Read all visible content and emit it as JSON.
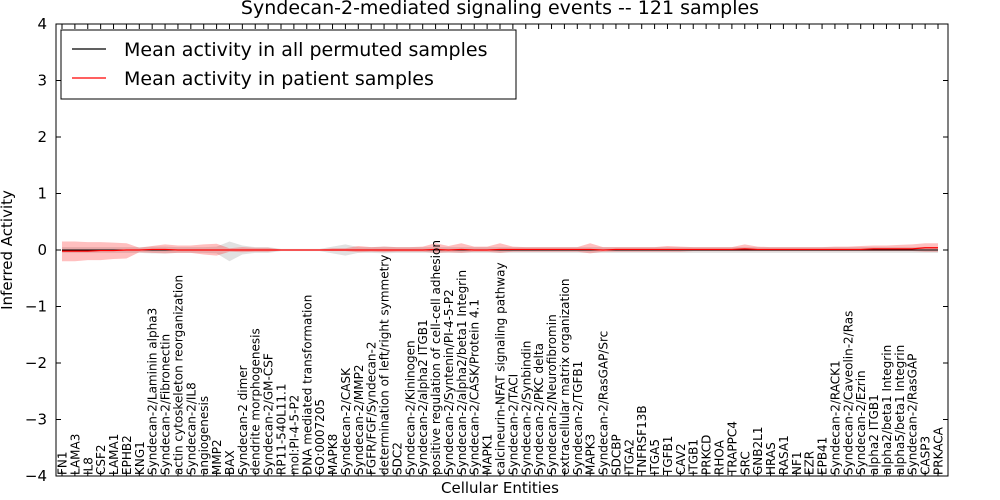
{
  "chart_data": {
    "type": "line",
    "title": "Syndecan-2-mediated signaling events -- 121 samples",
    "xlabel": "Cellular Entities",
    "ylabel": "Inferred Activity",
    "ylim": [
      -4,
      4
    ],
    "yticks": [
      4,
      3,
      2,
      1,
      0,
      -1,
      -2,
      -3,
      -4
    ],
    "legend": {
      "placement": "top-left",
      "entries": [
        "Mean activity in all permuted samples",
        "Mean activity in patient samples"
      ]
    },
    "categories": [
      "FN1",
      "LAMA3",
      "IL8",
      "CSF2",
      "LAMA1",
      "EPHB2",
      "KNG1",
      "Syndecan-2/Laminin alpha3",
      "Syndecan-2/Fibronectin",
      "actin cytoskeleton reorganization",
      "Syndecan-2/IL8",
      "angiogenesis",
      "MMP2",
      "BAX",
      "Syndecan-2 dimer",
      "dendrite morphogenesis",
      "Syndecan-2/GM-CSF",
      "RP11-540L11.1",
      "mol:PI-4-5-P2",
      "DNA mediated transformation",
      "GO:0007205",
      "MAPK8",
      "Syndecan-2/CASK",
      "Syndecan-2/MMP2",
      "FGFR/FGF/Syndecan-2",
      "determination of left/right symmetry",
      "SDC2",
      "Syndecan-2/Kininogen",
      "Syndecan-2/alpha2 ITGB1",
      "positive regulation of cell-cell adhesion",
      "Syndecan-2/Syntenin/PI-4-5-P2",
      "Syndecan-2/alpha2/beta1 Integrin",
      "Syndecan-2/CASK/Protein 4.1",
      "MAPK1",
      "calcineurin-NFAT signaling pathway",
      "Syndecan-2/TACI",
      "Syndecan-2/Synbindin",
      "Syndecan-2/PKC delta",
      "Syndecan-2/Neurofibromin",
      "extracellular matrix organization",
      "Syndecan-2/TGFB1",
      "MAPK3",
      "Syndecan-2/RasGAP/Src",
      "SDCBP",
      "ITGA2",
      "TNFRSF13B",
      "ITGA5",
      "TGFB1",
      "CAV2",
      "ITGB1",
      "PRKCD",
      "RHOA",
      "TRAPPC4",
      "SRC",
      "GNB2L1",
      "HRAS",
      "RASA1",
      "NF1",
      "EZR",
      "EPB41",
      "Syndecan-2/RACK1",
      "Syndecan-2/Caveolin-2/Ras",
      "Syndecan-2/Ezrin",
      "alpha2 ITGB1",
      "alpha2/beta1 Integrin",
      "alpha5/beta1 Integrin",
      "Syndecan-2/RasGAP",
      "CASP3",
      "PRKACA"
    ],
    "series": [
      {
        "name": "Mean activity in all permuted samples",
        "color": "#000000",
        "values": [
          0,
          0,
          0,
          0,
          0,
          0,
          0,
          0,
          0,
          0,
          0,
          0,
          0,
          0,
          0,
          0,
          0,
          0,
          0,
          0,
          0,
          0,
          0,
          0,
          0,
          0,
          0,
          0,
          0,
          0,
          0,
          0,
          0,
          0,
          0,
          0,
          0,
          0,
          0,
          0,
          0,
          0,
          0,
          0,
          0,
          0,
          0,
          0,
          0,
          0,
          0,
          0,
          0,
          0,
          0,
          0,
          0,
          0,
          0,
          0,
          0,
          0,
          0,
          0,
          0,
          0,
          0,
          0,
          0
        ],
        "band_low": [
          -0.05,
          -0.05,
          -0.05,
          -0.05,
          -0.05,
          -0.05,
          -0.05,
          -0.06,
          -0.06,
          -0.05,
          -0.05,
          -0.05,
          -0.06,
          -0.2,
          -0.08,
          -0.05,
          -0.05,
          -0.02,
          -0.02,
          -0.02,
          -0.02,
          -0.06,
          -0.1,
          -0.05,
          -0.05,
          -0.06,
          -0.05,
          -0.05,
          -0.05,
          -0.05,
          -0.05,
          -0.05,
          -0.05,
          -0.05,
          -0.05,
          -0.05,
          -0.05,
          -0.05,
          -0.05,
          -0.05,
          -0.05,
          -0.05,
          -0.05,
          -0.05,
          -0.05,
          -0.05,
          -0.05,
          -0.05,
          -0.05,
          -0.05,
          -0.05,
          -0.05,
          -0.05,
          -0.05,
          -0.05,
          -0.05,
          -0.05,
          -0.05,
          -0.05,
          -0.05,
          -0.05,
          -0.05,
          -0.05,
          -0.05,
          -0.05,
          -0.05,
          -0.05,
          -0.05,
          -0.05
        ],
        "band_high": [
          0.05,
          0.05,
          0.05,
          0.05,
          0.05,
          0.05,
          0.05,
          0.06,
          0.06,
          0.05,
          0.05,
          0.05,
          0.06,
          0.15,
          0.08,
          0.05,
          0.05,
          0.02,
          0.02,
          0.02,
          0.02,
          0.06,
          0.1,
          0.05,
          0.05,
          0.06,
          0.05,
          0.05,
          0.05,
          0.05,
          0.05,
          0.05,
          0.05,
          0.05,
          0.05,
          0.05,
          0.05,
          0.05,
          0.05,
          0.05,
          0.05,
          0.05,
          0.05,
          0.05,
          0.05,
          0.05,
          0.05,
          0.05,
          0.05,
          0.05,
          0.05,
          0.05,
          0.05,
          0.05,
          0.05,
          0.05,
          0.05,
          0.05,
          0.05,
          0.05,
          0.05,
          0.05,
          0.05,
          0.05,
          0.05,
          0.05,
          0.05,
          0.05,
          0.05
        ]
      },
      {
        "name": "Mean activity in patient samples",
        "color": "#ff0000",
        "values": [
          -0.02,
          -0.02,
          -0.02,
          -0.01,
          -0.01,
          0,
          0,
          0.01,
          0.01,
          0,
          0,
          0,
          0,
          0,
          0,
          0,
          0,
          0,
          0,
          0,
          0,
          0,
          0,
          0,
          0,
          0,
          0,
          0,
          0,
          0.01,
          0,
          0.01,
          0,
          0,
          0.01,
          0.01,
          0.01,
          0.01,
          0.01,
          0.01,
          0.01,
          0.01,
          0,
          0.01,
          0.01,
          0.01,
          0.01,
          0.01,
          0.01,
          0.01,
          0.01,
          0.01,
          0.01,
          0.02,
          0.01,
          0.01,
          0.01,
          0.01,
          0.01,
          0.01,
          0.01,
          0.01,
          0.01,
          0.02,
          0.02,
          0.02,
          0.02,
          0.04,
          0.04
        ],
        "band_low": [
          -0.2,
          -0.2,
          -0.18,
          -0.18,
          -0.16,
          -0.15,
          -0.04,
          -0.05,
          -0.06,
          -0.05,
          -0.05,
          -0.08,
          -0.1,
          -0.03,
          -0.04,
          -0.03,
          -0.03,
          -0.01,
          -0.01,
          -0.01,
          -0.01,
          -0.02,
          -0.02,
          -0.04,
          -0.03,
          -0.04,
          -0.03,
          -0.03,
          -0.03,
          -0.05,
          -0.04,
          -0.05,
          -0.03,
          -0.03,
          -0.05,
          -0.03,
          -0.03,
          -0.03,
          -0.03,
          -0.03,
          -0.03,
          -0.06,
          -0.03,
          -0.03,
          -0.03,
          -0.03,
          -0.03,
          -0.03,
          -0.03,
          -0.02,
          -0.02,
          -0.02,
          -0.02,
          -0.02,
          -0.02,
          -0.02,
          -0.02,
          -0.02,
          -0.02,
          -0.02,
          -0.02,
          -0.02,
          -0.02,
          -0.02,
          -0.02,
          -0.02,
          -0.02,
          -0.03,
          -0.03
        ],
        "band_high": [
          0.15,
          0.15,
          0.14,
          0.14,
          0.13,
          0.12,
          0.04,
          0.07,
          0.1,
          0.08,
          0.08,
          0.1,
          0.11,
          0.03,
          0.05,
          0.04,
          0.04,
          0.01,
          0.01,
          0.01,
          0.01,
          0.03,
          0.03,
          0.07,
          0.05,
          0.06,
          0.05,
          0.05,
          0.06,
          0.12,
          0.07,
          0.12,
          0.06,
          0.06,
          0.12,
          0.06,
          0.05,
          0.05,
          0.05,
          0.05,
          0.05,
          0.12,
          0.05,
          0.05,
          0.05,
          0.05,
          0.05,
          0.07,
          0.06,
          0.05,
          0.05,
          0.05,
          0.05,
          0.1,
          0.06,
          0.05,
          0.05,
          0.05,
          0.05,
          0.05,
          0.06,
          0.06,
          0.07,
          0.08,
          0.08,
          0.09,
          0.1,
          0.12,
          0.12
        ]
      }
    ]
  }
}
